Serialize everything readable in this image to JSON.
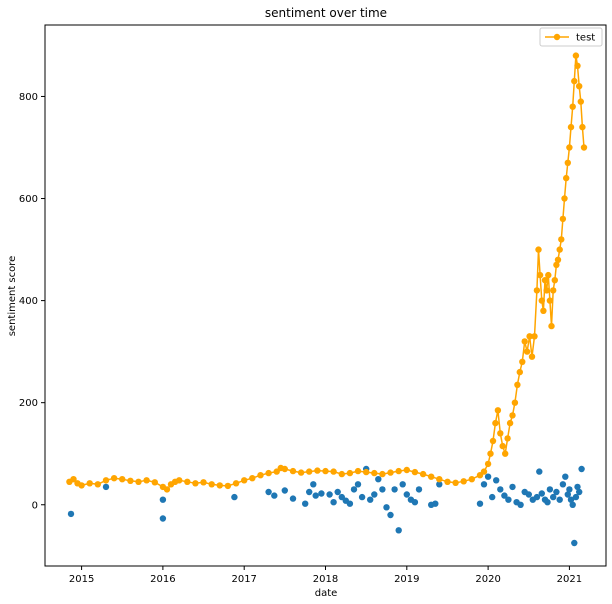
{
  "colors": {
    "series_line": "#ffa500",
    "scatter": "#1f77b4"
  },
  "chart_data": {
    "type": "scatter",
    "title": "sentiment over time",
    "xlabel": "date",
    "ylabel": "sentiment score",
    "x_is_year": true,
    "xlim": [
      2014.55,
      2021.45
    ],
    "ylim": [
      -120,
      940
    ],
    "x_ticks": [
      2015,
      2016,
      2017,
      2018,
      2019,
      2020,
      2021
    ],
    "x_tick_labels": [
      "2015",
      "2016",
      "2017",
      "2018",
      "2019",
      "2020",
      "2021"
    ],
    "y_ticks": [
      0,
      200,
      400,
      600,
      800
    ],
    "y_tick_labels": [
      "0",
      "200",
      "400",
      "600",
      "800"
    ],
    "grid": false,
    "legend_position": "top-right",
    "series": [
      {
        "name": "test",
        "kind": "line-with-markers",
        "color": "#ffa500",
        "x": [
          2014.85,
          2014.9,
          2014.95,
          2015.0,
          2015.1,
          2015.2,
          2015.3,
          2015.4,
          2015.5,
          2015.6,
          2015.7,
          2015.8,
          2015.9,
          2016.0,
          2016.05,
          2016.1,
          2016.15,
          2016.2,
          2016.3,
          2016.4,
          2016.5,
          2016.6,
          2016.7,
          2016.8,
          2016.9,
          2017.0,
          2017.1,
          2017.2,
          2017.3,
          2017.4,
          2017.45,
          2017.5,
          2017.6,
          2017.7,
          2017.8,
          2017.9,
          2018.0,
          2018.1,
          2018.2,
          2018.3,
          2018.4,
          2018.5,
          2018.6,
          2018.7,
          2018.8,
          2018.9,
          2019.0,
          2019.1,
          2019.2,
          2019.3,
          2019.4,
          2019.5,
          2019.6,
          2019.7,
          2019.8,
          2019.9,
          2019.95,
          2020.0,
          2020.03,
          2020.06,
          2020.09,
          2020.12,
          2020.15,
          2020.18,
          2020.21,
          2020.24,
          2020.27,
          2020.3,
          2020.33,
          2020.36,
          2020.39,
          2020.42,
          2020.45,
          2020.48,
          2020.51,
          2020.54,
          2020.57,
          2020.6,
          2020.62,
          2020.64,
          2020.66,
          2020.68,
          2020.7,
          2020.72,
          2020.74,
          2020.76,
          2020.78,
          2020.8,
          2020.82,
          2020.84,
          2020.86,
          2020.88,
          2020.9,
          2020.92,
          2020.94,
          2020.96,
          2020.98,
          2021.0,
          2021.02,
          2021.04,
          2021.06,
          2021.08,
          2021.1,
          2021.12,
          2021.14,
          2021.16,
          2021.18
        ],
        "y": [
          45,
          50,
          42,
          38,
          42,
          40,
          48,
          52,
          50,
          47,
          45,
          48,
          44,
          35,
          30,
          40,
          45,
          48,
          45,
          42,
          44,
          40,
          38,
          37,
          42,
          48,
          52,
          58,
          62,
          65,
          72,
          70,
          66,
          63,
          65,
          67,
          66,
          65,
          60,
          62,
          66,
          64,
          62,
          60,
          63,
          66,
          68,
          64,
          60,
          55,
          50,
          45,
          43,
          46,
          50,
          58,
          65,
          80,
          100,
          125,
          160,
          185,
          140,
          115,
          100,
          130,
          160,
          175,
          200,
          235,
          260,
          280,
          320,
          300,
          330,
          290,
          330,
          420,
          500,
          450,
          400,
          380,
          440,
          420,
          450,
          400,
          350,
          420,
          440,
          470,
          480,
          500,
          520,
          560,
          600,
          640,
          670,
          700,
          740,
          780,
          830,
          880,
          860,
          820,
          790,
          740,
          700
        ]
      },
      {
        "name": "",
        "kind": "scatter",
        "color": "#1f77b4",
        "x": [
          2014.87,
          2015.3,
          2016.0,
          2016.0,
          2016.88,
          2017.3,
          2017.37,
          2017.5,
          2017.6,
          2017.75,
          2017.8,
          2017.85,
          2017.88,
          2017.95,
          2018.05,
          2018.1,
          2018.15,
          2018.2,
          2018.25,
          2018.3,
          2018.35,
          2018.4,
          2018.45,
          2018.5,
          2018.55,
          2018.6,
          2018.65,
          2018.7,
          2018.75,
          2018.8,
          2018.85,
          2018.9,
          2018.95,
          2019.0,
          2019.05,
          2019.1,
          2019.15,
          2019.3,
          2019.35,
          2019.4,
          2019.9,
          2019.95,
          2020.0,
          2020.05,
          2020.1,
          2020.15,
          2020.2,
          2020.25,
          2020.3,
          2020.35,
          2020.4,
          2020.45,
          2020.5,
          2020.55,
          2020.6,
          2020.63,
          2020.66,
          2020.7,
          2020.73,
          2020.76,
          2020.8,
          2020.84,
          2020.88,
          2020.92,
          2020.95,
          2020.98,
          2021.0,
          2021.02,
          2021.04,
          2021.06,
          2021.08,
          2021.1,
          2021.12,
          2021.15
        ],
        "y": [
          -18,
          35,
          10,
          -27,
          15,
          25,
          18,
          28,
          12,
          2,
          25,
          40,
          18,
          22,
          20,
          5,
          25,
          15,
          8,
          2,
          30,
          40,
          15,
          70,
          10,
          20,
          50,
          30,
          -5,
          -20,
          30,
          -50,
          40,
          20,
          10,
          5,
          30,
          0,
          2,
          40,
          2,
          40,
          55,
          15,
          48,
          30,
          18,
          10,
          35,
          5,
          0,
          25,
          20,
          10,
          15,
          65,
          22,
          10,
          5,
          30,
          15,
          25,
          10,
          40,
          55,
          20,
          30,
          10,
          0,
          -75,
          15,
          35,
          25,
          70
        ]
      }
    ]
  }
}
